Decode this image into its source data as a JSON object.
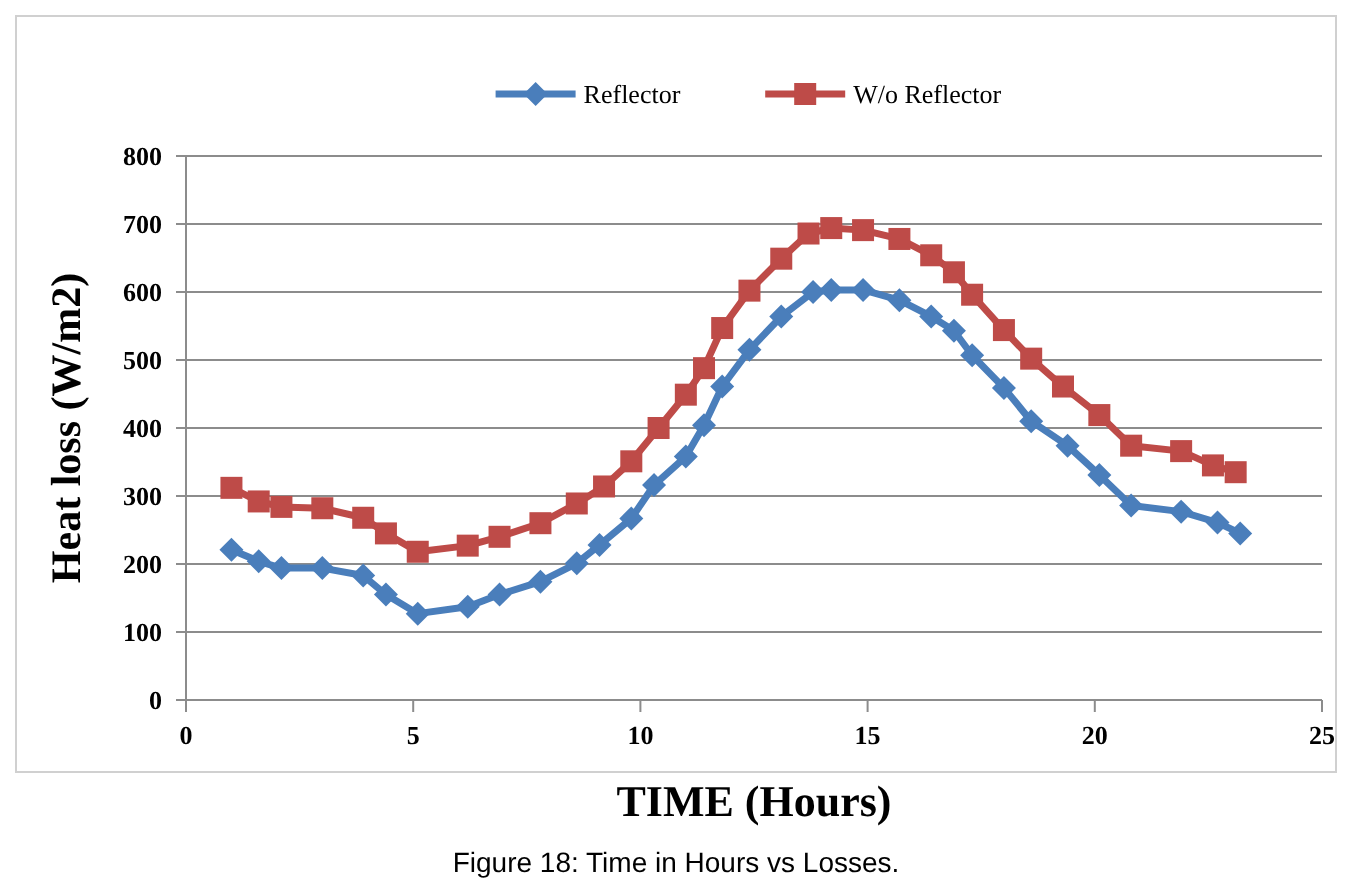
{
  "chart_data": {
    "type": "line",
    "xlabel": "TIME  (Hours)",
    "ylabel": "Heat loss (W/m2)",
    "xlim": [
      0,
      25
    ],
    "xticks": [
      0,
      5,
      10,
      15,
      20,
      25
    ],
    "ylim": [
      0,
      800
    ],
    "yticks": [
      0,
      100,
      200,
      300,
      400,
      500,
      600,
      700,
      800
    ],
    "grid": "y",
    "legend": "top",
    "annotations": [
      "Figure 18: Time in Hours vs Losses."
    ],
    "series": [
      {
        "name": "Reflector",
        "color": "#4a7ebb",
        "marker": "diamond",
        "x": [
          1.0,
          1.6,
          2.1,
          3.0,
          3.9,
          4.4,
          5.1,
          6.2,
          6.9,
          7.8,
          8.6,
          9.1,
          9.8,
          10.3,
          11.0,
          11.4,
          11.8,
          12.4,
          13.1,
          13.8,
          14.2,
          14.9,
          15.7,
          16.4,
          16.9,
          17.3,
          18.0,
          18.6,
          19.4,
          20.1,
          20.8,
          21.9,
          22.7,
          23.2
        ],
        "values": [
          221,
          204,
          194,
          194,
          183,
          155,
          127,
          137,
          155,
          174,
          201,
          228,
          267,
          316,
          358,
          404,
          461,
          515,
          564,
          600,
          603,
          603,
          588,
          564,
          543,
          507,
          459,
          410,
          374,
          331,
          286,
          277,
          261,
          245
        ]
      },
      {
        "name": "W/o Reflector",
        "color": "#be4b48",
        "marker": "square",
        "x": [
          1.0,
          1.6,
          2.1,
          3.0,
          3.9,
          4.4,
          5.1,
          6.2,
          6.9,
          7.8,
          8.6,
          9.2,
          9.8,
          10.4,
          11.0,
          11.4,
          11.8,
          12.4,
          13.1,
          13.7,
          14.2,
          14.9,
          15.7,
          16.4,
          16.9,
          17.3,
          18.0,
          18.6,
          19.3,
          20.1,
          20.8,
          21.9,
          22.6,
          23.1
        ],
        "values": [
          312,
          292,
          284,
          282,
          268,
          245,
          218,
          227,
          240,
          260,
          289,
          314,
          351,
          400,
          449,
          488,
          547,
          602,
          649,
          686,
          694,
          691,
          678,
          654,
          629,
          596,
          544,
          502,
          461,
          419,
          374,
          366,
          345,
          335
        ]
      }
    ]
  }
}
